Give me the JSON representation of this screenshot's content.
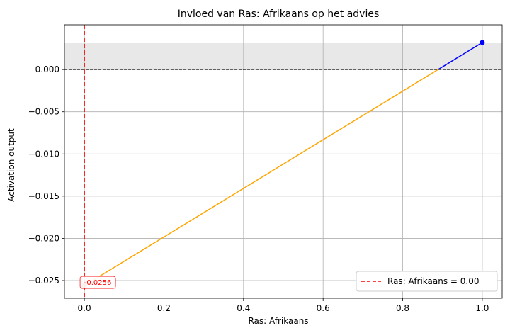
{
  "chart_data": {
    "type": "line",
    "title": "Invloed van Ras: Afrikaans op het advies",
    "xlabel": "Ras: Afrikaans",
    "ylabel": "Activation output",
    "xlim": [
      -0.05,
      1.05
    ],
    "ylim": [
      -0.0271,
      0.0053
    ],
    "x_ticks": [
      0.0,
      0.2,
      0.4,
      0.6,
      0.8,
      1.0
    ],
    "x_tick_labels": [
      "0.0",
      "0.2",
      "0.4",
      "0.6",
      "0.8",
      "1.0"
    ],
    "y_ticks": [
      -0.025,
      -0.02,
      -0.015,
      -0.01,
      -0.005,
      0.0
    ],
    "y_tick_labels": [
      "−0.025",
      "−0.020",
      "−0.015",
      "−0.010",
      "−0.005",
      "0.000"
    ],
    "grid": true,
    "series": [
      {
        "x": [
          0.0,
          1.0
        ],
        "y": [
          -0.0256,
          0.0032
        ],
        "color_negative": "#ffa500",
        "color_positive": "#0000ff"
      }
    ],
    "markers": [
      {
        "x": 0.0,
        "y": -0.0256,
        "color": "#ff6b6b"
      },
      {
        "x": 1.0,
        "y": 0.0032,
        "color": "#0000ff"
      }
    ],
    "shaded_band": {
      "y_from": 0.0,
      "y_to": 0.0032,
      "color": "#e8e8e8"
    },
    "reference_hline": {
      "y": 0.0,
      "color": "#000000",
      "style": "dashed"
    },
    "reference_vline": {
      "x": 0.0,
      "color": "#ff0000",
      "style": "dashed",
      "label": "Ras: Afrikaans = 0.00"
    },
    "annotation": {
      "text": "-0.0256",
      "x": 0.0,
      "y": -0.0256,
      "color": "#ff0000"
    },
    "legend": {
      "placement": "lower-right",
      "entries": [
        "Ras: Afrikaans = 0.00"
      ]
    }
  }
}
